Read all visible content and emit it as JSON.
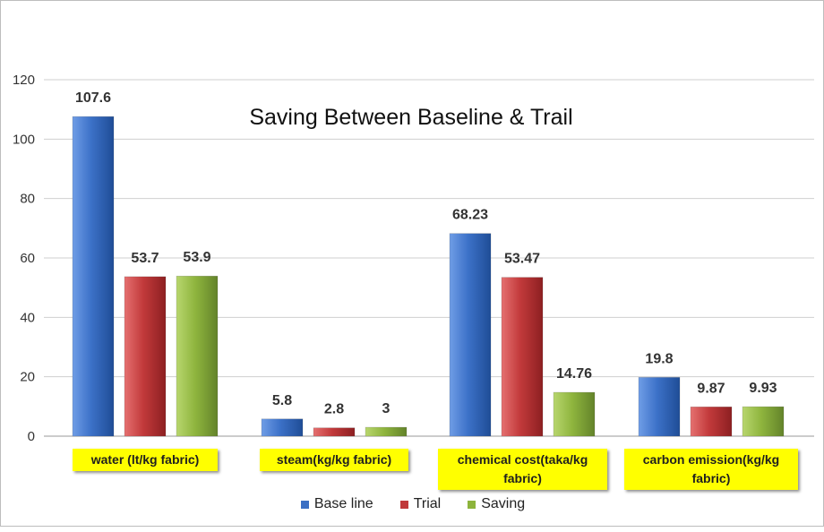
{
  "chart_data": {
    "type": "bar",
    "title": "Saving Between Baseline & Trail",
    "categories": [
      "water (lt/kg fabric)",
      "steam(kg/kg fabric)",
      "chemical cost(taka/kg fabric)",
      "carbon emission(kg/kg fabric)"
    ],
    "category_lines": [
      [
        "water (lt/kg fabric)"
      ],
      [
        "steam(kg/kg fabric)"
      ],
      [
        "chemical cost(taka/kg",
        "fabric)"
      ],
      [
        "carbon emission(kg/kg",
        "fabric)"
      ]
    ],
    "series": [
      {
        "name": "Base line",
        "values": [
          107.6,
          5.8,
          68.23,
          19.8
        ],
        "labels": [
          "107.6",
          "5.8",
          "68.23",
          "19.8"
        ],
        "color": "#3a6fc4"
      },
      {
        "name": "Trial",
        "values": [
          53.7,
          2.8,
          53.47,
          9.87
        ],
        "labels": [
          "53.7",
          "2.8",
          "53.47",
          "9.87"
        ],
        "color": "#c0383a"
      },
      {
        "name": "Saving",
        "values": [
          53.9,
          3,
          14.76,
          9.93
        ],
        "labels": [
          "53.9",
          "3",
          "14.76",
          "9.93"
        ],
        "color": "#8db43c"
      }
    ],
    "ylim": [
      0,
      120
    ],
    "yticks": [
      "0",
      "20",
      "40",
      "60",
      "80",
      "100",
      "120"
    ],
    "xlabel": "",
    "ylabel": "",
    "grid": true,
    "legend_position": "bottom"
  }
}
